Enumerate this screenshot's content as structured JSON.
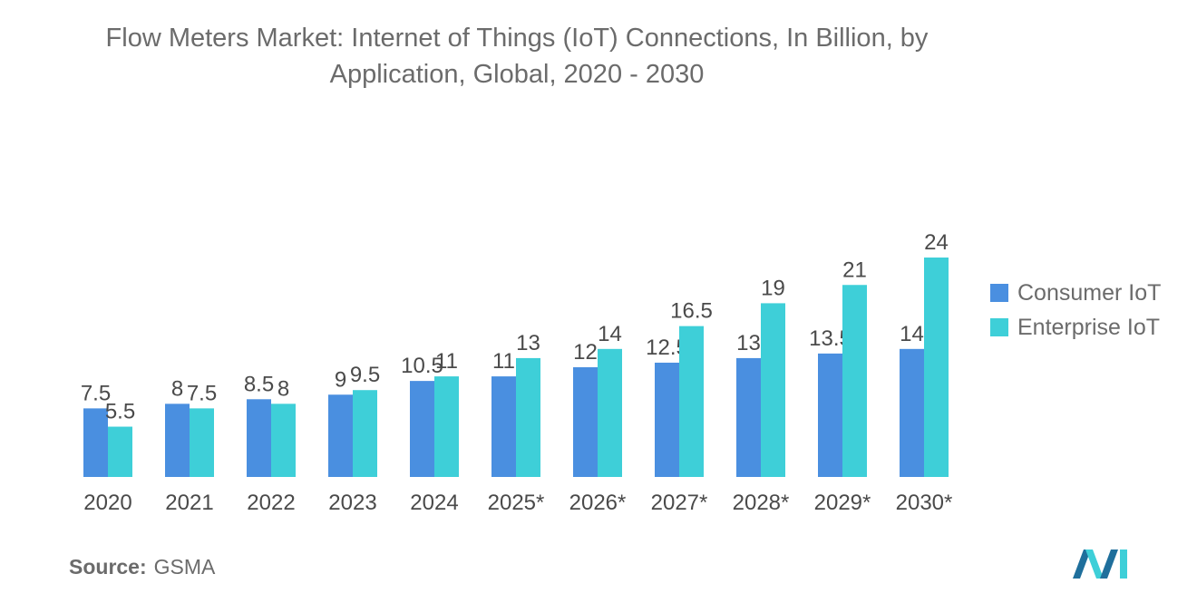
{
  "title": {
    "line1": "Flow Meters Market: Internet of Things (IoT) Connections, In Billion, by",
    "line2": "Application, Global, 2020 - 2030"
  },
  "chart_data": {
    "type": "bar",
    "title": "Flow Meters Market: Internet of Things (IoT) Connections, In Billion, by Application, Global, 2020 - 2030",
    "categories": [
      "2020",
      "2021",
      "2022",
      "2023",
      "2024",
      "2025*",
      "2026*",
      "2027*",
      "2028*",
      "2029*",
      "2030*"
    ],
    "series": [
      {
        "name": "Consumer IoT",
        "color": "#4a8fe0",
        "values": [
          7.5,
          8,
          8.5,
          9,
          10.5,
          11,
          12,
          12.5,
          13,
          13.5,
          14
        ]
      },
      {
        "name": "Enterprise IoT",
        "color": "#3ecfd8",
        "values": [
          5.5,
          7.5,
          8,
          9.5,
          11,
          13,
          14,
          16.5,
          19,
          21,
          24
        ]
      }
    ],
    "xlabel": "",
    "ylabel": "",
    "ylim": [
      0,
      24
    ],
    "grid": false,
    "legend_position": "right"
  },
  "legend": {
    "items": [
      {
        "label": "Consumer IoT",
        "color": "#4a8fe0"
      },
      {
        "label": "Enterprise IoT",
        "color": "#3ecfd8"
      }
    ]
  },
  "source": {
    "label": "Source:",
    "value": "GSMA"
  },
  "colors": {
    "text": "#6b6b6b",
    "logo_dark": "#1f6f9c",
    "logo_light": "#3ecfd8"
  }
}
